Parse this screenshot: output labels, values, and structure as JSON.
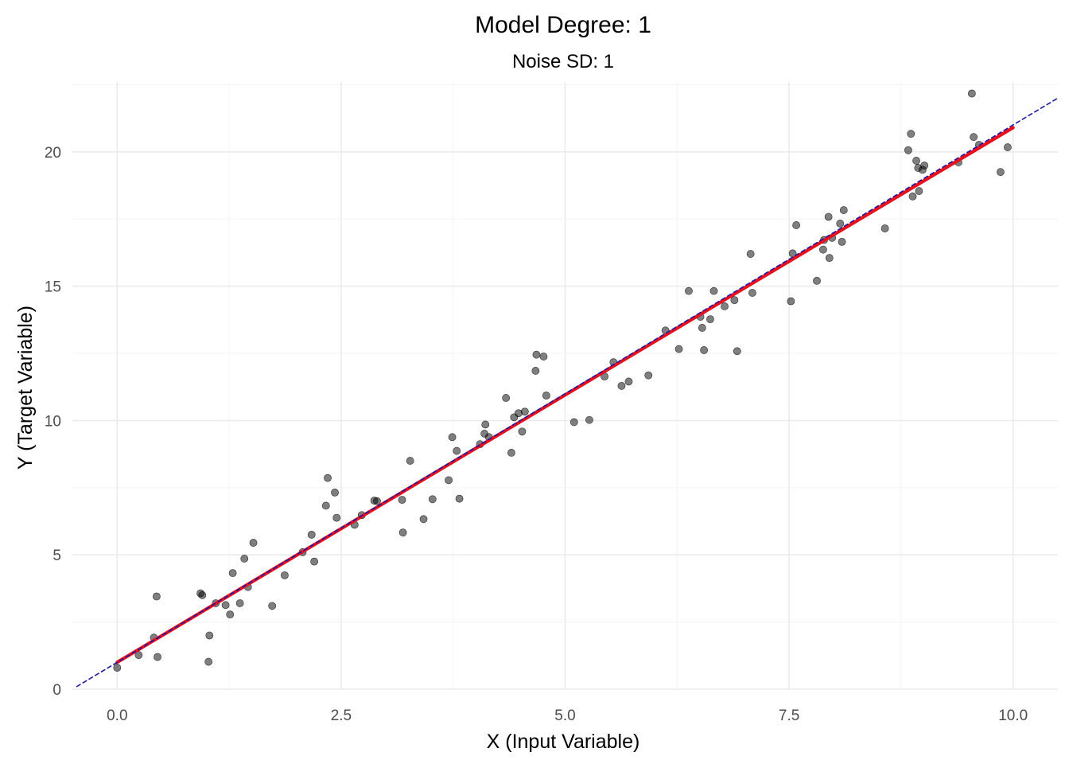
{
  "chart_data": {
    "type": "scatter",
    "title": "Model Degree: 1",
    "subtitle": "Noise SD: 1",
    "xlabel": "X (Input Variable)",
    "ylabel": "Y (Target Variable)",
    "xlim": [
      -0.5,
      10.5
    ],
    "ylim": [
      0,
      22.6
    ],
    "x_ticks": [
      0.0,
      2.5,
      5.0,
      7.5,
      10.0
    ],
    "x_tick_labels": [
      "0.0",
      "2.5",
      "5.0",
      "7.5",
      "10.0"
    ],
    "y_ticks": [
      0,
      5,
      10,
      15,
      20
    ],
    "y_tick_labels": [
      "0",
      "5",
      "10",
      "15",
      "20"
    ],
    "grid": true,
    "series": [
      {
        "kind": "points",
        "color": "#000000",
        "points": [
          [
            0.0,
            0.8
          ],
          [
            0.24,
            1.27
          ],
          [
            0.41,
            1.92
          ],
          [
            0.44,
            3.45
          ],
          [
            0.45,
            1.2
          ],
          [
            0.93,
            3.57
          ],
          [
            0.95,
            3.5
          ],
          [
            1.02,
            1.02
          ],
          [
            1.03,
            2.0
          ],
          [
            1.1,
            3.2
          ],
          [
            1.21,
            3.13
          ],
          [
            1.26,
            2.78
          ],
          [
            1.29,
            4.32
          ],
          [
            1.37,
            3.2
          ],
          [
            1.42,
            4.86
          ],
          [
            1.46,
            3.8
          ],
          [
            1.52,
            5.45
          ],
          [
            1.73,
            3.1
          ],
          [
            1.87,
            4.24
          ],
          [
            2.07,
            5.1
          ],
          [
            2.17,
            5.75
          ],
          [
            2.2,
            4.75
          ],
          [
            2.33,
            6.83
          ],
          [
            2.35,
            7.86
          ],
          [
            2.43,
            7.32
          ],
          [
            2.45,
            6.38
          ],
          [
            2.65,
            6.12
          ],
          [
            2.73,
            6.48
          ],
          [
            2.87,
            7.02
          ],
          [
            2.9,
            7.0
          ],
          [
            3.18,
            7.05
          ],
          [
            3.19,
            5.83
          ],
          [
            3.27,
            8.5
          ],
          [
            3.42,
            6.33
          ],
          [
            3.52,
            7.07
          ],
          [
            3.7,
            7.78
          ],
          [
            3.74,
            9.38
          ],
          [
            3.79,
            8.87
          ],
          [
            3.82,
            7.09
          ],
          [
            4.05,
            9.12
          ],
          [
            4.1,
            9.51
          ],
          [
            4.11,
            9.85
          ],
          [
            4.15,
            9.38
          ],
          [
            4.34,
            10.84
          ],
          [
            4.4,
            8.8
          ],
          [
            4.43,
            10.12
          ],
          [
            4.48,
            10.27
          ],
          [
            4.52,
            9.59
          ],
          [
            4.55,
            10.33
          ],
          [
            4.67,
            11.85
          ],
          [
            4.68,
            12.45
          ],
          [
            4.76,
            12.38
          ],
          [
            4.79,
            10.93
          ],
          [
            5.1,
            9.94
          ],
          [
            5.27,
            10.02
          ],
          [
            5.44,
            11.64
          ],
          [
            5.54,
            12.17
          ],
          [
            5.63,
            11.29
          ],
          [
            5.71,
            11.45
          ],
          [
            5.93,
            11.68
          ],
          [
            6.12,
            13.35
          ],
          [
            6.27,
            12.66
          ],
          [
            6.38,
            14.82
          ],
          [
            6.51,
            13.86
          ],
          [
            6.53,
            13.45
          ],
          [
            6.55,
            12.62
          ],
          [
            6.62,
            13.77
          ],
          [
            6.66,
            14.82
          ],
          [
            6.78,
            14.25
          ],
          [
            6.89,
            14.48
          ],
          [
            6.92,
            12.58
          ],
          [
            7.07,
            16.2
          ],
          [
            7.09,
            14.75
          ],
          [
            7.52,
            14.44
          ],
          [
            7.54,
            16.22
          ],
          [
            7.58,
            17.27
          ],
          [
            7.81,
            15.2
          ],
          [
            7.88,
            16.36
          ],
          [
            7.89,
            16.72
          ],
          [
            7.94,
            17.58
          ],
          [
            7.95,
            16.05
          ],
          [
            7.98,
            16.8
          ],
          [
            8.07,
            17.33
          ],
          [
            8.09,
            16.65
          ],
          [
            8.11,
            17.83
          ],
          [
            8.57,
            17.15
          ],
          [
            8.83,
            20.06
          ],
          [
            8.86,
            20.67
          ],
          [
            8.88,
            18.34
          ],
          [
            8.92,
            19.67
          ],
          [
            8.94,
            19.4
          ],
          [
            8.95,
            18.54
          ],
          [
            8.99,
            19.33
          ],
          [
            9.01,
            19.49
          ],
          [
            9.39,
            19.61
          ],
          [
            9.54,
            22.17
          ],
          [
            9.56,
            20.55
          ],
          [
            9.62,
            20.26
          ],
          [
            9.86,
            19.25
          ],
          [
            9.94,
            20.17
          ]
        ]
      },
      {
        "kind": "line",
        "name": "fitted",
        "color": "#e8101d",
        "x": [
          0.0,
          10.0
        ],
        "y": [
          1.0,
          20.9
        ]
      },
      {
        "kind": "line",
        "name": "true",
        "color": "#1a1aa6",
        "dashed": true,
        "x": [
          -0.45,
          10.5
        ],
        "y": [
          0.1,
          22.0
        ]
      }
    ]
  }
}
